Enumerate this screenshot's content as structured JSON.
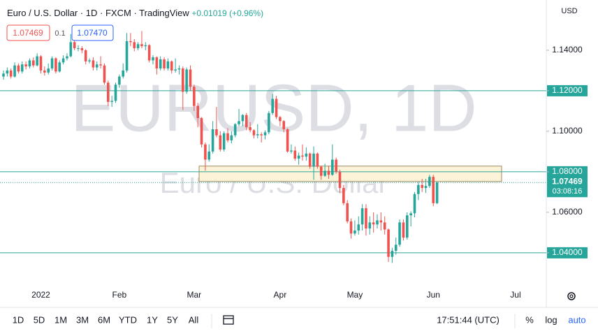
{
  "chart_data": {
    "type": "candlestick",
    "symbol": "Euro / U.S. Dollar",
    "interval": "1D",
    "exchange": "FXCM",
    "source": "TradingView",
    "separator": "·",
    "change": "+0.01019 (+0.96%)",
    "currency": "USD",
    "watermark": "EURUSD, 1D",
    "watermark_sub": "Euro / U.S. Dollar",
    "sell": "1.07469",
    "spread": "0.1",
    "buy": "1.07470",
    "up_color": "#26a69a",
    "down_color": "#ef5350",
    "line_color": "#26a69a",
    "categories": [
      null,
      null,
      null,
      null,
      null,
      null,
      null,
      null,
      null,
      null,
      "2022",
      null,
      null,
      null,
      null,
      null,
      null,
      null,
      null,
      null,
      null,
      null,
      null,
      null,
      null,
      null,
      null,
      null,
      null,
      null,
      null,
      "Feb",
      null,
      null,
      null,
      null,
      null,
      null,
      null,
      null,
      null,
      null,
      null,
      null,
      null,
      null,
      null,
      null,
      null,
      null,
      null,
      "Mar",
      null,
      null,
      null,
      null,
      null,
      null,
      null,
      null,
      null,
      null,
      null,
      null,
      null,
      null,
      null,
      null,
      null,
      null,
      null,
      null,
      null,
      null,
      "Apr",
      null,
      null,
      null,
      null,
      null,
      null,
      null,
      null,
      null,
      null,
      null,
      null,
      null,
      null,
      null,
      null,
      null,
      null,
      null,
      "May",
      null,
      null,
      null,
      null,
      null,
      null,
      null,
      null,
      null,
      null,
      null,
      null,
      null,
      null,
      null,
      null,
      null,
      null,
      null,
      null,
      "Jun",
      null,
      null,
      null,
      null,
      null,
      null,
      null,
      null,
      null,
      null,
      null,
      null,
      null,
      null,
      null,
      null,
      null,
      null,
      null,
      null,
      null,
      "Jul",
      null,
      null,
      null,
      null,
      null,
      null,
      null,
      null
    ],
    "open": [
      1.127,
      1.1285,
      1.13,
      1.127,
      1.1325,
      1.1295,
      1.133,
      1.132,
      1.135,
      1.1325,
      1.137,
      1.13,
      1.129,
      1.131,
      1.136,
      1.1295,
      1.134,
      1.136,
      1.137,
      1.144,
      1.141,
      1.141,
      1.14,
      1.1345,
      1.135,
      1.1315,
      1.133,
      1.1325,
      1.124,
      1.1145,
      1.115,
      1.123,
      1.127,
      1.13,
      1.1445,
      1.144,
      1.141,
      1.143,
      1.142,
      1.1425,
      1.135,
      1.1365,
      1.131,
      1.1355,
      1.131,
      1.1345,
      1.13,
      1.1305,
      1.131,
      1.1195,
      1.1305,
      1.122,
      1.1125,
      1.1065,
      1.0935,
      1.086,
      1.09,
      1.101,
      1.098,
      1.091,
      1.099,
      1.0955,
      1.098,
      1.1035,
      1.105,
      1.108,
      1.102,
      1.1005,
      1.098,
      1.0985,
      1.098,
      1.0995,
      1.109,
      1.116,
      1.107,
      1.105,
      1.101,
      1.09,
      1.0905,
      1.0865,
      1.088,
      1.0875,
      1.089,
      1.0825,
      1.089,
      1.0825,
      1.078,
      1.0805,
      1.0785,
      1.086,
      1.08,
      1.072,
      1.0645,
      1.0555,
      1.0495,
      1.051,
      1.054,
      1.062,
      1.052,
      1.055,
      1.054,
      1.056,
      1.055,
      1.0515,
      1.038,
      1.041,
      1.044,
      1.055,
      1.0475,
      1.0585,
      1.0595,
      1.069,
      1.0735,
      1.072,
      1.073,
      1.0775,
      1.0645,
      null,
      null,
      null,
      null,
      null,
      null,
      null,
      null,
      null,
      null,
      null,
      null,
      null,
      null,
      null,
      null,
      null,
      null,
      null,
      null,
      null,
      null,
      null,
      null,
      null,
      null,
      null,
      null,
      null
    ],
    "high": [
      1.13,
      1.1315,
      1.131,
      1.134,
      1.1335,
      1.1345,
      1.1345,
      1.136,
      1.1365,
      1.1385,
      1.1375,
      1.132,
      1.1335,
      1.137,
      1.1365,
      1.135,
      1.1375,
      1.1385,
      1.148,
      1.145,
      1.1425,
      1.142,
      1.1405,
      1.136,
      1.1365,
      1.1345,
      1.137,
      1.1335,
      1.125,
      1.1175,
      1.124,
      1.128,
      1.1335,
      1.1485,
      1.1485,
      1.1455,
      1.144,
      1.1495,
      1.144,
      1.143,
      1.1375,
      1.137,
      1.137,
      1.1365,
      1.136,
      1.135,
      1.136,
      1.1325,
      1.132,
      1.1315,
      1.1325,
      1.123,
      1.114,
      1.107,
      1.0945,
      1.0935,
      1.105,
      1.112,
      1.1,
      1.1,
      1.1015,
      1.1,
      1.104,
      1.111,
      1.1085,
      1.109,
      1.1045,
      1.101,
      1.1035,
      1.0995,
      1.1005,
      1.11,
      1.1185,
      1.1175,
      1.1075,
      1.1055,
      1.1015,
      1.0935,
      1.0925,
      1.0895,
      1.0935,
      1.092,
      1.0895,
      1.0925,
      1.0895,
      1.083,
      1.084,
      1.083,
      1.0935,
      1.087,
      1.081,
      1.0735,
      1.066,
      1.057,
      1.056,
      1.058,
      1.064,
      1.064,
      1.058,
      1.06,
      1.059,
      1.06,
      1.058,
      1.052,
      1.0425,
      1.0475,
      1.0565,
      1.0565,
      1.06,
      1.0605,
      1.07,
      1.075,
      1.0765,
      1.0765,
      1.0785,
      1.0785,
      1.075,
      null,
      null,
      null,
      null,
      null,
      null,
      null,
      null,
      null,
      null,
      null,
      null,
      null,
      null,
      null,
      null,
      null,
      null,
      null,
      null,
      null,
      null,
      null,
      null,
      null,
      null,
      null,
      null,
      null
    ],
    "low": [
      1.1255,
      1.127,
      1.126,
      1.1265,
      1.1285,
      1.1285,
      1.1305,
      1.131,
      1.1315,
      1.132,
      1.1285,
      1.1275,
      1.128,
      1.13,
      1.1285,
      1.129,
      1.133,
      1.135,
      1.1365,
      1.14,
      1.1395,
      1.1385,
      1.133,
      1.1335,
      1.13,
      1.13,
      1.131,
      1.123,
      1.1125,
      1.112,
      1.114,
      1.1215,
      1.126,
      1.129,
      1.142,
      1.1395,
      1.14,
      1.141,
      1.14,
      1.134,
      1.133,
      1.128,
      1.13,
      1.13,
      1.13,
      1.1285,
      1.129,
      1.128,
      1.1105,
      1.1185,
      1.12,
      1.11,
      1.102,
      1.092,
      1.0805,
      1.085,
      1.089,
      1.097,
      1.09,
      1.09,
      1.0945,
      1.094,
      1.097,
      1.1025,
      1.1025,
      1.1005,
      1.0995,
      1.0965,
      1.0965,
      1.0945,
      1.096,
      1.0985,
      1.108,
      1.106,
      1.1025,
      1.0995,
      1.0895,
      1.089,
      1.0855,
      1.0835,
      1.0855,
      1.0855,
      1.0815,
      1.076,
      1.0815,
      1.076,
      1.0775,
      1.0765,
      1.078,
      1.079,
      1.0695,
      1.0635,
      1.0545,
      1.047,
      1.0485,
      1.049,
      1.051,
      1.0485,
      1.049,
      1.05,
      1.052,
      1.051,
      1.049,
      1.0355,
      1.035,
      1.039,
      1.043,
      1.046,
      1.0465,
      1.053,
      1.0575,
      1.066,
      1.07,
      1.0695,
      1.072,
      1.063,
      1.064,
      null,
      null,
      null,
      null,
      null,
      null,
      null,
      null,
      null,
      null,
      null,
      null,
      null,
      null,
      null,
      null,
      null,
      null,
      null,
      null,
      null,
      null,
      null,
      null,
      null,
      null,
      null,
      null,
      null
    ],
    "close": [
      1.1285,
      1.13,
      1.127,
      1.1325,
      1.1295,
      1.133,
      1.132,
      1.135,
      1.1325,
      1.137,
      1.13,
      1.129,
      1.131,
      1.136,
      1.1295,
      1.134,
      1.136,
      1.137,
      1.144,
      1.141,
      1.141,
      1.14,
      1.1345,
      1.135,
      1.1315,
      1.133,
      1.1325,
      1.124,
      1.1145,
      1.115,
      1.123,
      1.127,
      1.13,
      1.1445,
      1.144,
      1.141,
      1.143,
      1.142,
      1.1425,
      1.135,
      1.1365,
      1.131,
      1.1355,
      1.131,
      1.1345,
      1.13,
      1.1305,
      1.131,
      1.1195,
      1.1305,
      1.122,
      1.1125,
      1.1065,
      1.0935,
      1.086,
      1.09,
      1.101,
      1.098,
      1.091,
      1.099,
      1.0955,
      1.098,
      1.1035,
      1.105,
      1.108,
      1.102,
      1.1005,
      1.098,
      1.0985,
      1.098,
      1.0995,
      1.109,
      1.116,
      1.107,
      1.105,
      1.101,
      1.09,
      1.0905,
      1.0865,
      1.088,
      1.0875,
      1.089,
      1.0825,
      1.089,
      1.0825,
      1.078,
      1.0805,
      1.0785,
      1.086,
      1.08,
      1.072,
      1.0645,
      1.0555,
      1.0495,
      1.051,
      1.054,
      1.062,
      1.052,
      1.055,
      1.054,
      1.056,
      1.055,
      1.0515,
      1.038,
      1.041,
      1.044,
      1.055,
      1.0475,
      1.0585,
      1.0595,
      1.069,
      1.0735,
      1.072,
      1.073,
      1.0775,
      1.0645,
      1.07469,
      null,
      null,
      null,
      null,
      null,
      null,
      null,
      null,
      null,
      null,
      null,
      null,
      null,
      null,
      null,
      null,
      null,
      null,
      null,
      null,
      null,
      null,
      null,
      null,
      null,
      null,
      null,
      null,
      null
    ],
    "ylim": [
      1.0241,
      1.1648
    ],
    "yticks": [
      {
        "value": 1.04,
        "label": "1.04000"
      },
      {
        "value": 1.06,
        "label": "1.06000"
      },
      {
        "value": 1.08,
        "label": "1.08000"
      },
      {
        "value": 1.1,
        "label": "1.10000"
      },
      {
        "value": 1.12,
        "label": "1.12000"
      },
      {
        "value": 1.14,
        "label": "1.14000"
      }
    ],
    "hlines": [
      1.12,
      1.08,
      1.04
    ],
    "zone": {
      "top": 1.0828,
      "bottom": 1.0752,
      "color": "#fdf3d8",
      "border": "#9b8b5e"
    },
    "last": {
      "value": 1.07469,
      "label": "1.07469",
      "countdown": "03:08:16"
    },
    "ranges": [
      "1D",
      "5D",
      "1M",
      "3M",
      "6M",
      "YTD",
      "1Y",
      "5Y",
      "All"
    ],
    "clock": "17:51:44 (UTC)",
    "percent": "%",
    "log": "log",
    "auto": "auto"
  }
}
